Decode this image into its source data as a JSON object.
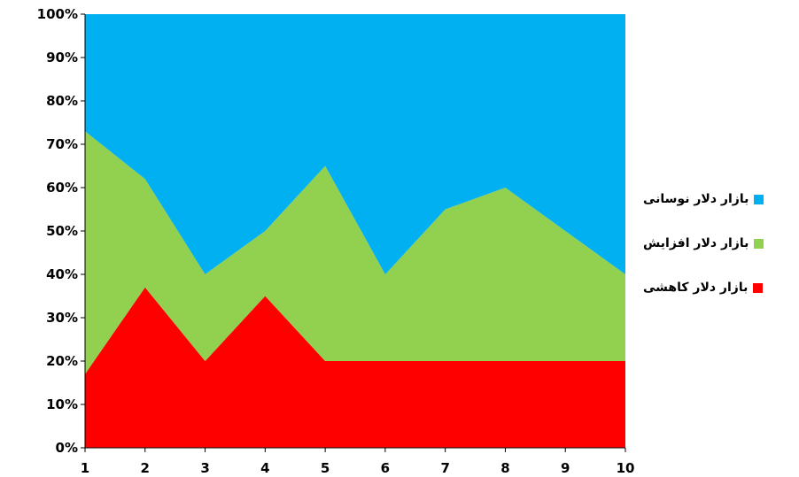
{
  "chart_data": {
    "type": "area",
    "stacked": "percent",
    "x": [
      1,
      2,
      3,
      4,
      5,
      6,
      7,
      8,
      9,
      10
    ],
    "x_tick_labels": [
      "1",
      "2",
      "3",
      "4",
      "5",
      "6",
      "7",
      "8",
      "9",
      "10"
    ],
    "ylim": [
      0,
      100
    ],
    "y_tick_labels": [
      "0%",
      "10%",
      "20%",
      "30%",
      "40%",
      "50%",
      "60%",
      "70%",
      "80%",
      "90%",
      "100%"
    ],
    "grid": false,
    "legend_position": "right",
    "series": [
      {
        "name": "بازار دلار کاهشی",
        "color": "#ff0000",
        "values": [
          17,
          37,
          20,
          35,
          20,
          20,
          20,
          20,
          20,
          20
        ]
      },
      {
        "name": "بازار دلار افزایش",
        "color": "#92d050",
        "values": [
          56,
          25,
          20,
          15,
          45,
          20,
          35,
          40,
          30,
          20
        ]
      },
      {
        "name": "بازار دلار نوسانی",
        "color": "#00b0f0",
        "values": [
          27,
          38,
          60,
          50,
          35,
          60,
          45,
          40,
          50,
          60
        ]
      }
    ]
  }
}
